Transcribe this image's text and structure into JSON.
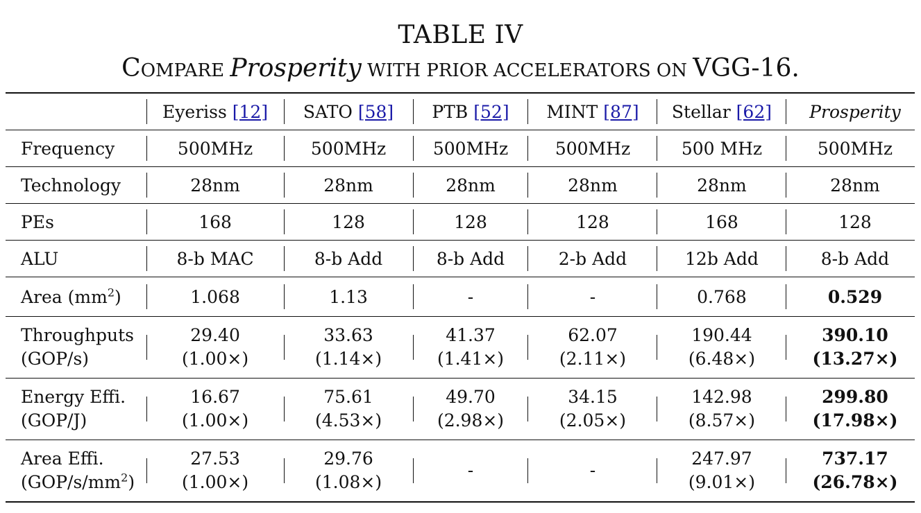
{
  "caption": {
    "line1": "TABLE IV",
    "line2_part1": "C",
    "line2_part2": "OMPARE ",
    "line2_italic": "Prosperity",
    "line2_part3": " WITH PRIOR ACCELERATORS ON ",
    "line2_part4": "VGG-16."
  },
  "header": {
    "cols": [
      {
        "name": "Eyeriss",
        "ref": "[12]"
      },
      {
        "name": "SATO",
        "ref": "[58]"
      },
      {
        "name": "PTB",
        "ref": "[52]"
      },
      {
        "name": "MINT",
        "ref": "[87]"
      },
      {
        "name": "Stellar",
        "ref": "[62]"
      },
      {
        "name": "Prosperity",
        "ref": ""
      }
    ]
  },
  "rows": {
    "frequency": {
      "label": "Frequency",
      "values": [
        "500MHz",
        "500MHz",
        "500MHz",
        "500MHz",
        "500 MHz",
        "500MHz"
      ]
    },
    "technology": {
      "label": "Technology",
      "values": [
        "28nm",
        "28nm",
        "28nm",
        "28nm",
        "28nm",
        "28nm"
      ]
    },
    "pes": {
      "label": "PEs",
      "values": [
        "168",
        "128",
        "128",
        "128",
        "168",
        "128"
      ]
    },
    "alu": {
      "label": "ALU",
      "values": [
        "8-b MAC",
        "8-b Add",
        "8-b Add",
        "2-b Add",
        "12b Add",
        "8-b Add"
      ]
    },
    "area": {
      "label": "Area (mm",
      "label_sup": "2",
      "label_end": ")",
      "values": [
        "1.068",
        "1.13",
        "-",
        "-",
        "0.768",
        "0.529"
      ]
    },
    "throughputs": {
      "label1": "Throughputs",
      "label2": "(GOP/s)",
      "values": [
        "29.40",
        "33.63",
        "41.37",
        "62.07",
        "190.44",
        "390.10"
      ],
      "ratios": [
        "(1.00×)",
        "(1.14×)",
        "(1.41×)",
        "(2.11×)",
        "(6.48×)",
        "(13.27×)"
      ]
    },
    "energy": {
      "label1": "Energy Effi.",
      "label2": "(GOP/J)",
      "values": [
        "16.67",
        "75.61",
        "49.70",
        "34.15",
        "142.98",
        "299.80"
      ],
      "ratios": [
        "(1.00×)",
        "(4.53×)",
        "(2.98×)",
        "(2.05×)",
        "(8.57×)",
        "(17.98×)"
      ]
    },
    "area_effi": {
      "label1": "Area Effi.",
      "label2": "(GOP/s/mm",
      "label2_sup": "2",
      "label2_end": ")",
      "values": [
        "27.53",
        "29.76",
        "-",
        "-",
        "247.97",
        "737.17"
      ],
      "ratios": [
        "(1.00×)",
        "(1.08×)",
        "",
        "",
        "(9.01×)",
        "(26.78×)"
      ]
    }
  }
}
